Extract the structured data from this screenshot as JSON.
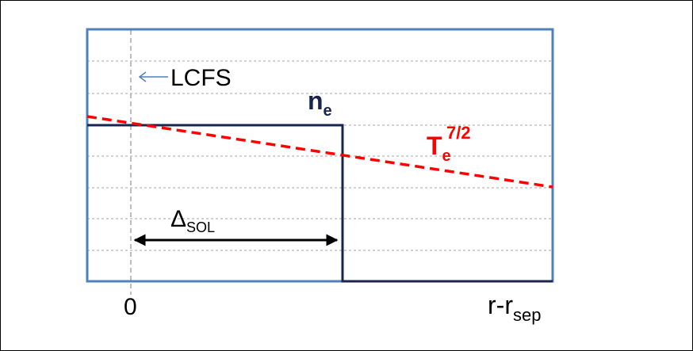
{
  "diagram": {
    "lcfs_label": "LCFS",
    "ne_label": {
      "base": "n",
      "sub": "e"
    },
    "te_label": {
      "base": "T",
      "sub": "e",
      "sup": "7/2"
    },
    "sol_label": {
      "base": "Δ",
      "sub": "SOL"
    },
    "x_zero_label": "0",
    "x_axis_label": {
      "base": "r-r",
      "sub": "sep"
    }
  },
  "colors": {
    "axis_box": "#4f81bd",
    "grid": "#a6a6a6",
    "ne_line": "#17254f",
    "te_line": "#ff0000",
    "lcfs_arrow": "#4f81bd",
    "text": "#000000"
  }
}
